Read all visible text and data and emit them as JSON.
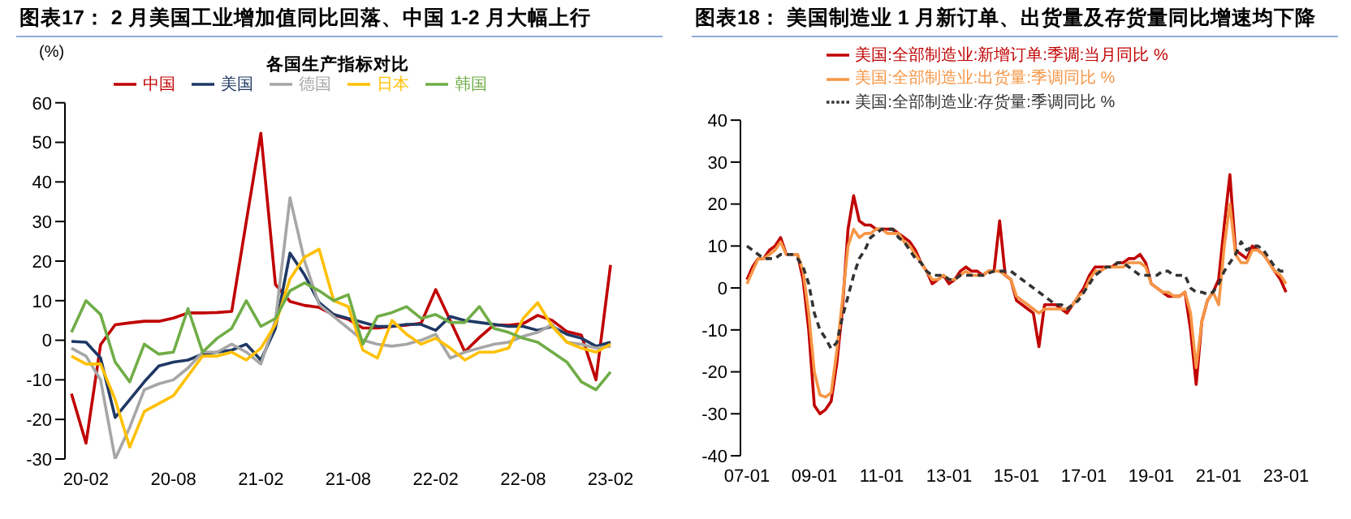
{
  "chart_data": [
    {
      "type": "line",
      "title": "图表17：  2 月美国工业增加值同比回落、中国 1-2 月大幅上行",
      "subtitle": "各国生产指标对比",
      "ylabel": "(%)",
      "categories": [
        null,
        "20-02",
        null,
        null,
        null,
        null,
        null,
        "20-08",
        null,
        null,
        null,
        null,
        null,
        "21-02",
        null,
        null,
        null,
        null,
        null,
        "21-08",
        null,
        null,
        null,
        null,
        null,
        "22-02",
        null,
        null,
        null,
        null,
        null,
        "22-08",
        null,
        null,
        null,
        null,
        null,
        "23-02"
      ],
      "series": [
        {
          "name": "中国",
          "color": "#c00000",
          "values": [
            -13.5,
            -26,
            -1.1,
            3.9,
            4.4,
            4.8,
            4.8,
            5.6,
            6.9,
            6.9,
            7.0,
            7.3,
            30,
            52.3,
            14.1,
            9.8,
            8.8,
            8.3,
            6.4,
            5.3,
            3.1,
            3.1,
            3.5,
            3.8,
            4.3,
            12.8,
            5.0,
            -2.9,
            0.7,
            3.9,
            3.8,
            4.2,
            6.3,
            5.0,
            2.2,
            1.3,
            -10,
            19
          ]
        },
        {
          "name": "美国",
          "color": "#1f3864",
          "values": [
            -0.3,
            -0.5,
            -4.5,
            -19.5,
            -15,
            -10.5,
            -6.5,
            -5.5,
            -5,
            -3.5,
            -3,
            -2.5,
            -1,
            -5,
            3,
            22,
            16.5,
            9.5,
            6.5,
            5.5,
            4.5,
            3.5,
            3.5,
            4,
            4,
            2.5,
            6,
            5,
            4.5,
            4,
            3.5,
            3.5,
            2.5,
            3.5,
            1.5,
            0.5,
            -1.5,
            -0.5
          ]
        },
        {
          "name": "德国",
          "color": "#a6a6a6",
          "values": [
            -2,
            -4,
            -10,
            -30,
            -22,
            -12.5,
            -11,
            -10,
            -7,
            -3,
            -3,
            -1,
            -3,
            -6,
            5,
            36,
            20,
            9,
            6,
            3,
            0,
            -1,
            -1.5,
            -1,
            0,
            1.5,
            -4.5,
            -3,
            -2,
            -1,
            -0.5,
            1,
            2,
            4,
            -0.5,
            -1,
            -2,
            -1.5
          ]
        },
        {
          "name": "日本",
          "color": "#ffc000",
          "values": [
            -4,
            -6,
            -6,
            -15,
            -27,
            -18,
            -16,
            -14,
            -9,
            -4,
            -4,
            -3,
            -5,
            -2,
            4,
            15.5,
            21,
            23,
            10,
            8.5,
            -2.5,
            -4.5,
            5,
            1.5,
            -1,
            0.5,
            -2,
            -5,
            -3,
            -3,
            -2,
            5.5,
            9.5,
            3.5,
            -0.5,
            -2,
            -3,
            -1
          ]
        },
        {
          "name": "韩国",
          "color": "#70ad47",
          "values": [
            2,
            10,
            6.5,
            -5.5,
            -10.5,
            -1,
            -3.5,
            -3,
            8,
            -3,
            0.5,
            3,
            10,
            3.5,
            5.5,
            12.5,
            14.5,
            12.5,
            10,
            11.5,
            -1,
            6,
            7,
            8.5,
            5.5,
            6.5,
            4.5,
            4.5,
            8.5,
            3,
            2,
            0.5,
            -0.5,
            -3,
            -5.5,
            -10.5,
            -12.5,
            -8
          ]
        }
      ],
      "ylim": [
        -30,
        60
      ],
      "yticks": [
        -30,
        -20,
        -10,
        0,
        10,
        20,
        30,
        40,
        50,
        60
      ],
      "legend": "top"
    },
    {
      "type": "line",
      "title": "图表18：  美国制造业 1 月新订单、出货量及存货量同比增速均下降",
      "categories": [
        "07-01",
        null,
        null,
        null,
        null,
        null,
        null,
        null,
        null,
        null,
        null,
        null,
        "09-01",
        null,
        null,
        null,
        null,
        null,
        null,
        null,
        null,
        null,
        null,
        null,
        "11-01",
        null,
        null,
        null,
        null,
        null,
        null,
        null,
        null,
        null,
        null,
        null,
        "13-01",
        null,
        null,
        null,
        null,
        null,
        null,
        null,
        null,
        null,
        null,
        null,
        "15-01",
        null,
        null,
        null,
        null,
        null,
        null,
        null,
        null,
        null,
        null,
        null,
        "17-01",
        null,
        null,
        null,
        null,
        null,
        null,
        null,
        null,
        null,
        null,
        null,
        "19-01",
        null,
        null,
        null,
        null,
        null,
        null,
        null,
        null,
        null,
        null,
        null,
        "21-01",
        null,
        null,
        null,
        null,
        null,
        null,
        null,
        null,
        null,
        null,
        null,
        "23-01"
      ],
      "series": [
        {
          "name": "美国:全部制造业:新增订单:季调:当月同比 %",
          "color": "#c00000",
          "line_style": "solid",
          "values": [
            2,
            5,
            7,
            7,
            9,
            10,
            12,
            8,
            8,
            8,
            2,
            -10,
            -28,
            -30,
            -29,
            -27,
            -18,
            -5,
            14,
            22,
            16,
            15,
            15,
            14,
            14,
            14,
            14,
            13,
            12,
            11,
            9,
            6,
            4,
            1,
            2,
            3,
            1,
            2,
            4,
            5,
            4,
            4,
            3,
            4,
            4,
            16,
            3,
            2,
            -3,
            -4,
            -5,
            -6,
            -14,
            -4,
            -4,
            -4,
            -5,
            -6,
            -4,
            -2,
            0,
            3,
            5,
            5,
            5,
            5,
            6,
            6,
            7,
            7,
            8,
            6,
            1,
            0,
            -1,
            -2,
            -2,
            -2,
            -1,
            -10,
            -23,
            -8,
            -3,
            -1,
            2,
            15,
            27,
            9,
            8,
            7,
            10,
            9,
            8,
            6,
            4,
            2,
            -1
          ]
        },
        {
          "name": "美国:全部制造业:出货量:季调同比 %",
          "color": "#f79646",
          "line_style": "solid",
          "values": [
            1,
            4,
            7,
            7,
            8,
            9,
            11,
            8,
            8,
            8,
            4,
            -6,
            -20,
            -25.5,
            -26,
            -25,
            -15,
            -3,
            10,
            14,
            12,
            13,
            13,
            14,
            14,
            13,
            13,
            13,
            11,
            10,
            8,
            6,
            4,
            2,
            2,
            3,
            2,
            2,
            3,
            4,
            3,
            3,
            3,
            4,
            4,
            4,
            3,
            2,
            -2,
            -3,
            -4,
            -5,
            -6,
            -5,
            -5,
            -5,
            -5,
            -5,
            -4,
            -2,
            -1,
            2,
            4,
            4,
            5,
            5,
            5,
            5,
            6,
            6,
            6,
            5,
            1,
            0,
            -1,
            -1,
            -2,
            -2,
            -1,
            -6,
            -19,
            -8,
            -3,
            -1,
            -4,
            10,
            20,
            8,
            6,
            6,
            9,
            9,
            8,
            6,
            4,
            3,
            1
          ]
        },
        {
          "name": "美国:全部制造业:存货量:季调同比 %",
          "color": "#333333",
          "line_style": "dashed",
          "values": [
            10,
            9,
            8,
            7,
            7,
            7,
            8,
            8,
            8,
            7,
            5,
            1,
            -6,
            -10,
            -12,
            -14.5,
            -13,
            -7,
            -2,
            3,
            7,
            9,
            12,
            13,
            14,
            14,
            14,
            12,
            11,
            9,
            7,
            6,
            4,
            3,
            3,
            3,
            2,
            2,
            3,
            3,
            3,
            3,
            3,
            3.5,
            4,
            4,
            4,
            4,
            3,
            2,
            1,
            0,
            -1,
            -2,
            -3,
            -4,
            -4,
            -5,
            -4,
            -3,
            -1,
            1,
            3,
            4,
            5,
            5,
            6,
            6,
            5,
            4,
            3,
            3,
            3,
            3,
            4,
            4,
            3,
            3,
            3,
            0,
            -1,
            -1,
            -1.5,
            -1,
            1,
            4,
            6,
            8,
            11,
            9,
            10,
            10,
            9,
            7,
            5,
            4,
            4
          ]
        }
      ],
      "ylim": [
        -40,
        40
      ],
      "yticks": [
        -40,
        -30,
        -20,
        -10,
        0,
        10,
        20,
        30,
        40
      ],
      "legend": "top"
    }
  ]
}
